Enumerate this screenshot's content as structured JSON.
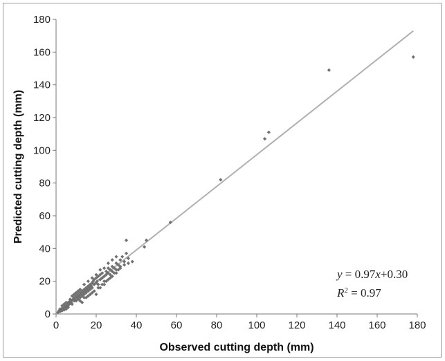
{
  "chart_data": {
    "type": "scatter",
    "xlabel": "Observed cutting depth (mm)",
    "ylabel": "Predicted cutting depth (mm)",
    "xlim": [
      0,
      180
    ],
    "ylim": [
      0,
      180
    ],
    "xticks": [
      0,
      20,
      40,
      60,
      80,
      100,
      120,
      140,
      160,
      180
    ],
    "yticks": [
      0,
      20,
      40,
      60,
      80,
      100,
      120,
      140,
      160,
      180
    ],
    "grid": false,
    "marker_color": "#707070",
    "line_color": "#b0b0b0",
    "trendline": {
      "slope": 0.97,
      "intercept": 0.3
    },
    "annotation": {
      "equation": {
        "y": "y",
        "eq": " = 0.97",
        "x": "x",
        "tail": "+0.30"
      },
      "r2": {
        "R": "R",
        "sup": "2",
        "val": " = 0.97"
      }
    },
    "points": [
      [
        1,
        1
      ],
      [
        1.5,
        2
      ],
      [
        2,
        1.5
      ],
      [
        2,
        3
      ],
      [
        2.5,
        2.5
      ],
      [
        3,
        2
      ],
      [
        3,
        3.5
      ],
      [
        3.5,
        3
      ],
      [
        4,
        4
      ],
      [
        4,
        2.5
      ],
      [
        4.5,
        5
      ],
      [
        5,
        4
      ],
      [
        5,
        3
      ],
      [
        5.5,
        5.5
      ],
      [
        6,
        5
      ],
      [
        6,
        7
      ],
      [
        6.5,
        6
      ],
      [
        7,
        6.5
      ],
      [
        7,
        8
      ],
      [
        7.5,
        7
      ],
      [
        8,
        8.5
      ],
      [
        8,
        6
      ],
      [
        8.5,
        9
      ],
      [
        9,
        8
      ],
      [
        9,
        10
      ],
      [
        9.5,
        9
      ],
      [
        10,
        11
      ],
      [
        10,
        8
      ],
      [
        10.5,
        10
      ],
      [
        11,
        12
      ],
      [
        11,
        9
      ],
      [
        11.5,
        11
      ],
      [
        12,
        13
      ],
      [
        12,
        10
      ],
      [
        12.5,
        12
      ],
      [
        13,
        14
      ],
      [
        13,
        11
      ],
      [
        13.5,
        13
      ],
      [
        14,
        15
      ],
      [
        14,
        12
      ],
      [
        14.5,
        14
      ],
      [
        15,
        16
      ],
      [
        15,
        13
      ],
      [
        15.5,
        15
      ],
      [
        16,
        17
      ],
      [
        16,
        14
      ],
      [
        16.5,
        16
      ],
      [
        17,
        18
      ],
      [
        17,
        15
      ],
      [
        17.5,
        17
      ],
      [
        18,
        19
      ],
      [
        18,
        16
      ],
      [
        18.5,
        20
      ],
      [
        19,
        18
      ],
      [
        19,
        21
      ],
      [
        20,
        19
      ],
      [
        20,
        22
      ],
      [
        20.5,
        20
      ],
      [
        21,
        23
      ],
      [
        21,
        18
      ],
      [
        22,
        21
      ],
      [
        22,
        24
      ],
      [
        23,
        22
      ],
      [
        23,
        25
      ],
      [
        24,
        23
      ],
      [
        24,
        20
      ],
      [
        25,
        26
      ],
      [
        25,
        24
      ],
      [
        26,
        25
      ],
      [
        26,
        28
      ],
      [
        27,
        27
      ],
      [
        27,
        24
      ],
      [
        28,
        29
      ],
      [
        28,
        26
      ],
      [
        29,
        28
      ],
      [
        30,
        31
      ],
      [
        30,
        27
      ],
      [
        31,
        30
      ],
      [
        32,
        33
      ],
      [
        32,
        29
      ],
      [
        33,
        35
      ],
      [
        34,
        32
      ],
      [
        35,
        37
      ],
      [
        36,
        34
      ],
      [
        9,
        12
      ],
      [
        10,
        13
      ],
      [
        11,
        14
      ],
      [
        12,
        15
      ],
      [
        13,
        7
      ],
      [
        14,
        18
      ],
      [
        15,
        10
      ],
      [
        16,
        20
      ],
      [
        17,
        12
      ],
      [
        18,
        22
      ],
      [
        19,
        14
      ],
      [
        20,
        24
      ],
      [
        21,
        16
      ],
      [
        22,
        27
      ],
      [
        23,
        18
      ],
      [
        24,
        28
      ],
      [
        25,
        20
      ],
      [
        26,
        31
      ],
      [
        27,
        22
      ],
      [
        28,
        33
      ],
      [
        29,
        25
      ],
      [
        30,
        35
      ],
      [
        31,
        27
      ],
      [
        8,
        11
      ],
      [
        7,
        9
      ],
      [
        6,
        4
      ],
      [
        5,
        7
      ],
      [
        4,
        6
      ],
      [
        3,
        5
      ],
      [
        12,
        8
      ],
      [
        14,
        10
      ],
      [
        16,
        11
      ],
      [
        18,
        13
      ],
      [
        20,
        12
      ],
      [
        22,
        16
      ],
      [
        24,
        18
      ],
      [
        26,
        21
      ],
      [
        28,
        23
      ],
      [
        30,
        25
      ],
      [
        32,
        28
      ],
      [
        34,
        30
      ],
      [
        36,
        31
      ],
      [
        35,
        45
      ],
      [
        38,
        32
      ],
      [
        44,
        41
      ],
      [
        45,
        45
      ],
      [
        57,
        56
      ],
      [
        82,
        82
      ],
      [
        104,
        107
      ],
      [
        106,
        111
      ],
      [
        136,
        149
      ],
      [
        178,
        157
      ]
    ]
  }
}
